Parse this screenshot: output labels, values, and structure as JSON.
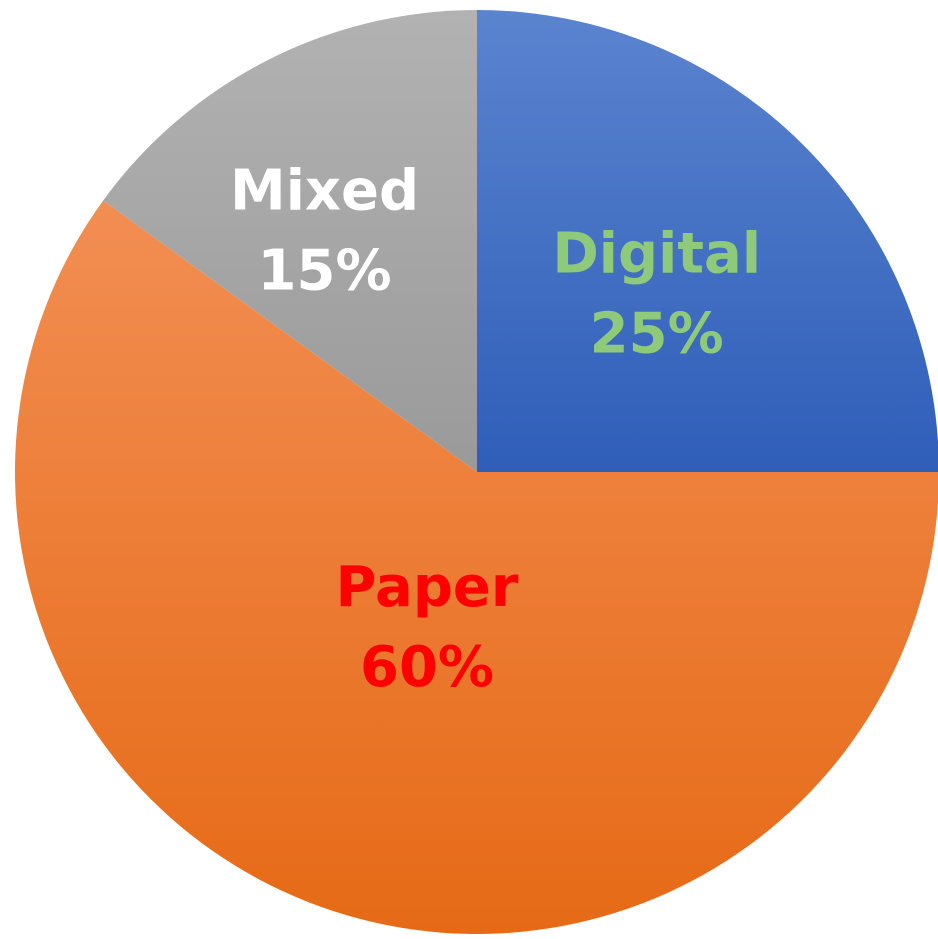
{
  "chart_data": {
    "type": "pie",
    "slices": [
      {
        "category": "Digital",
        "value": 25,
        "percent_label": "25%",
        "color": "#4472C4",
        "label_color": "#8FC97A"
      },
      {
        "category": "Paper",
        "value": 60,
        "percent_label": "60%",
        "color": "#F07D2E",
        "label_color": "#FF0000"
      },
      {
        "category": "Mixed",
        "value": 15,
        "percent_label": "15%",
        "color": "#A5A5A5",
        "label_color": "#FFFFFF"
      }
    ],
    "start_angle": "12 o'clock, clockwise",
    "legend": "none",
    "data_labels": "inside slices (category and percent)"
  }
}
